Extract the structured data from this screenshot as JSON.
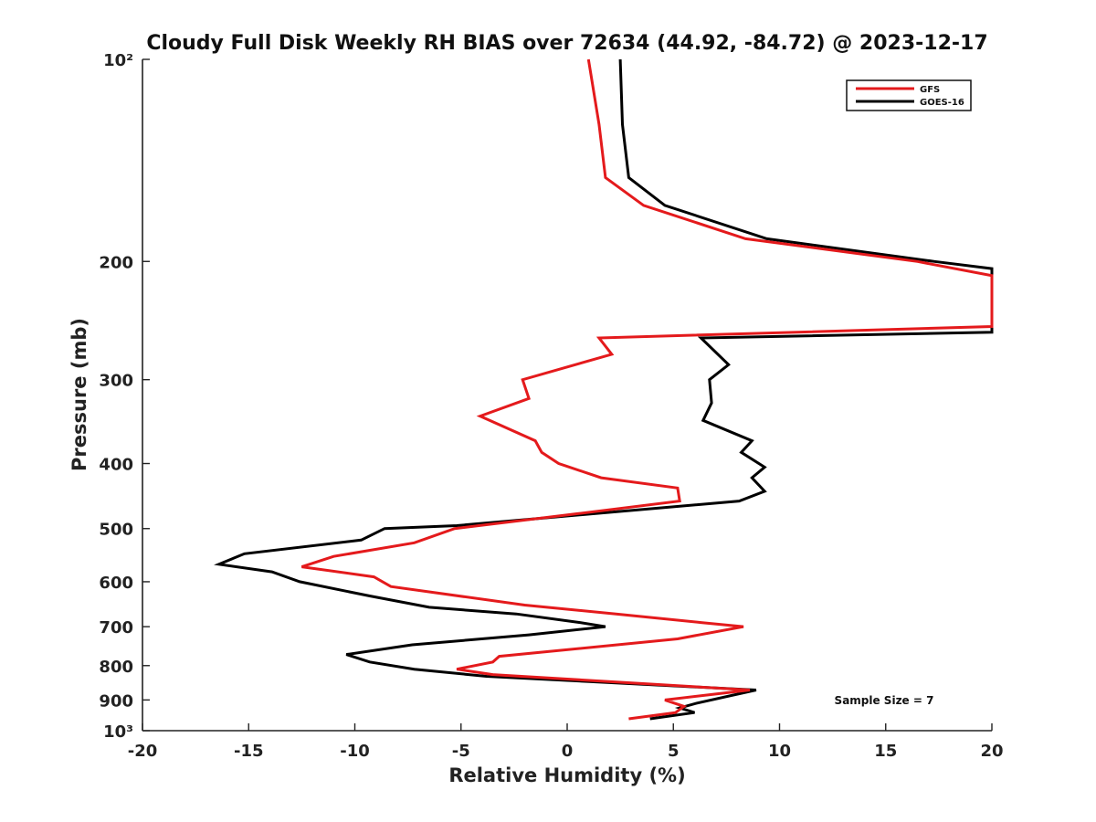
{
  "chart_data": {
    "type": "line",
    "title": "Cloudy Full Disk Weekly RH BIAS over 72634 (44.92, -84.72) @ 2023-12-17",
    "xlabel": "Relative Humidity (%)",
    "ylabel": "Pressure (mb)",
    "xlim": [
      -20,
      20
    ],
    "ylim": [
      100,
      1000
    ],
    "y_scale": "log",
    "y_reversed": true,
    "x_ticks": [
      -20,
      -15,
      -10,
      -5,
      0,
      5,
      10,
      15,
      20
    ],
    "x_tick_labels": [
      "-20",
      "-15",
      "-10",
      "-5",
      "0",
      "5",
      "10",
      "15",
      "20"
    ],
    "y_ticks": [
      100,
      200,
      300,
      400,
      500,
      600,
      700,
      800,
      900,
      1000
    ],
    "y_tick_labels": [
      "10²",
      "200",
      "300",
      "400",
      "500",
      "600",
      "700",
      "800",
      "900",
      "10³"
    ],
    "grid": false,
    "legend": "top-right",
    "annotation": "Sample Size = 7",
    "series": [
      {
        "name": "GFS",
        "color": "#e41a1c",
        "points": [
          {
            "x": 1.0,
            "p": 100
          },
          {
            "x": 1.5,
            "p": 125
          },
          {
            "x": 1.8,
            "p": 150
          },
          {
            "x": 3.6,
            "p": 165
          },
          {
            "x": 8.4,
            "p": 185
          },
          {
            "x": 16.5,
            "p": 200
          },
          {
            "x": 20.0,
            "p": 210
          },
          {
            "x": 20.0,
            "p": 250
          },
          {
            "x": 1.5,
            "p": 260
          },
          {
            "x": 2.1,
            "p": 275
          },
          {
            "x": -2.1,
            "p": 300
          },
          {
            "x": -1.8,
            "p": 320
          },
          {
            "x": -4.1,
            "p": 340
          },
          {
            "x": -1.5,
            "p": 370
          },
          {
            "x": -1.2,
            "p": 385
          },
          {
            "x": -0.4,
            "p": 400
          },
          {
            "x": 1.6,
            "p": 420
          },
          {
            "x": 5.2,
            "p": 435
          },
          {
            "x": 5.3,
            "p": 455
          },
          {
            "x": 0.5,
            "p": 475
          },
          {
            "x": -5.3,
            "p": 500
          },
          {
            "x": -7.2,
            "p": 525
          },
          {
            "x": -11.0,
            "p": 550
          },
          {
            "x": -12.5,
            "p": 570
          },
          {
            "x": -9.1,
            "p": 590
          },
          {
            "x": -8.3,
            "p": 610
          },
          {
            "x": -2.0,
            "p": 650
          },
          {
            "x": 2.3,
            "p": 670
          },
          {
            "x": 6.3,
            "p": 690
          },
          {
            "x": 8.3,
            "p": 700
          },
          {
            "x": 5.2,
            "p": 730
          },
          {
            "x": -3.2,
            "p": 775
          },
          {
            "x": -3.5,
            "p": 790
          },
          {
            "x": -5.2,
            "p": 810
          },
          {
            "x": -3.5,
            "p": 825
          },
          {
            "x": 8.6,
            "p": 870
          },
          {
            "x": 4.6,
            "p": 900
          },
          {
            "x": 5.5,
            "p": 920
          },
          {
            "x": 5.1,
            "p": 940
          },
          {
            "x": 2.9,
            "p": 960
          }
        ]
      },
      {
        "name": "GOES-16",
        "color": "#000000",
        "points": [
          {
            "x": 2.5,
            "p": 100
          },
          {
            "x": 2.6,
            "p": 125
          },
          {
            "x": 2.9,
            "p": 150
          },
          {
            "x": 4.6,
            "p": 165
          },
          {
            "x": 9.4,
            "p": 185
          },
          {
            "x": 17.3,
            "p": 200
          },
          {
            "x": 20.0,
            "p": 205
          },
          {
            "x": 20.0,
            "p": 255
          },
          {
            "x": 6.3,
            "p": 260
          },
          {
            "x": 7.6,
            "p": 285
          },
          {
            "x": 6.7,
            "p": 300
          },
          {
            "x": 6.8,
            "p": 325
          },
          {
            "x": 6.4,
            "p": 345
          },
          {
            "x": 8.7,
            "p": 370
          },
          {
            "x": 8.2,
            "p": 385
          },
          {
            "x": 9.3,
            "p": 405
          },
          {
            "x": 8.7,
            "p": 420
          },
          {
            "x": 9.3,
            "p": 440
          },
          {
            "x": 8.1,
            "p": 455
          },
          {
            "x": -5.2,
            "p": 495
          },
          {
            "x": -8.6,
            "p": 500
          },
          {
            "x": -9.7,
            "p": 520
          },
          {
            "x": -15.2,
            "p": 545
          },
          {
            "x": -16.4,
            "p": 565
          },
          {
            "x": -13.9,
            "p": 580
          },
          {
            "x": -12.6,
            "p": 600
          },
          {
            "x": -9.3,
            "p": 630
          },
          {
            "x": -6.5,
            "p": 655
          },
          {
            "x": -2.4,
            "p": 670
          },
          {
            "x": 0.6,
            "p": 690
          },
          {
            "x": 1.8,
            "p": 700
          },
          {
            "x": -1.8,
            "p": 720
          },
          {
            "x": -7.3,
            "p": 745
          },
          {
            "x": -10.4,
            "p": 770
          },
          {
            "x": -9.3,
            "p": 790
          },
          {
            "x": -7.2,
            "p": 810
          },
          {
            "x": -3.8,
            "p": 830
          },
          {
            "x": 8.9,
            "p": 870
          },
          {
            "x": 6.1,
            "p": 910
          },
          {
            "x": 5.3,
            "p": 925
          },
          {
            "x": 6.0,
            "p": 940
          },
          {
            "x": 3.9,
            "p": 960
          }
        ]
      }
    ]
  }
}
